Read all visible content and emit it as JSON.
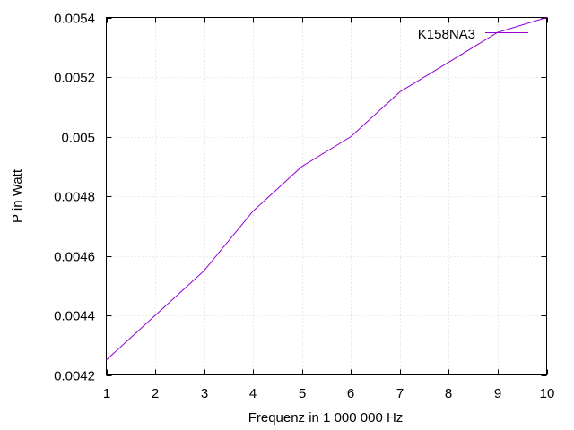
{
  "chart_data": {
    "type": "line",
    "title": "",
    "xlabel": "Frequenz in 1 000 000 Hz",
    "ylabel": "P in Watt",
    "xlim": [
      1,
      10
    ],
    "ylim": [
      0.0042,
      0.0054
    ],
    "x_ticks": [
      1,
      2,
      3,
      4,
      5,
      6,
      7,
      8,
      9,
      10
    ],
    "x_tick_labels": [
      "1",
      "2",
      "3",
      "4",
      "5",
      "6",
      "7",
      "8",
      "9",
      "10"
    ],
    "y_ticks": [
      0.0042,
      0.0044,
      0.0046,
      0.0048,
      0.005,
      0.0052,
      0.0054
    ],
    "y_tick_labels": [
      "0.0042",
      "0.0044",
      "0.0046",
      "0.0048",
      "0.005",
      "0.0052",
      "0.0054"
    ],
    "grid": true,
    "legend_position": "top-right",
    "series": [
      {
        "name": "K158NA3",
        "color": "#9400d3",
        "x": [
          1,
          2,
          3,
          4,
          5,
          6,
          7,
          8,
          9,
          10
        ],
        "y": [
          0.00425,
          0.0044,
          0.00455,
          0.00475,
          0.0049,
          0.005,
          0.00515,
          0.00525,
          0.00535,
          0.0054
        ]
      }
    ]
  }
}
